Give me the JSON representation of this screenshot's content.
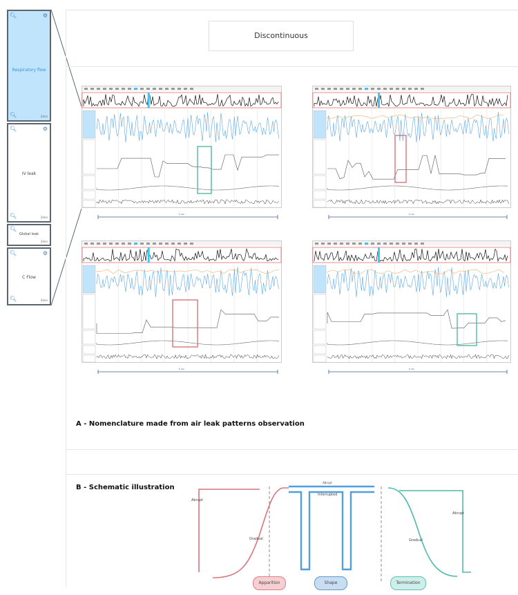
{
  "header": {
    "title": "Discontinuous"
  },
  "sidebar": {
    "items": [
      {
        "label": "Respiratory flow",
        "scale": "2min"
      },
      {
        "label": "IV leak",
        "scale": "2min"
      },
      {
        "label": "Global leak",
        "scale": "2min"
      },
      {
        "label": "C Flow",
        "scale": "2min"
      }
    ]
  },
  "recordings": [
    {
      "scale_label": "5 min",
      "highlight": "teal"
    },
    {
      "scale_label": "5 min",
      "highlight": "red"
    },
    {
      "scale_label": "5 min",
      "highlight": "red"
    },
    {
      "scale_label": "5 min",
      "highlight": "teal"
    }
  ],
  "section_a": {
    "title": "A - Nomenclature made from air leak patterns observation"
  },
  "section_b": {
    "title": "B - Schematic illustration",
    "labels": {
      "abrupt_left": "Abrupt",
      "gradual_left": "Gradual",
      "abrupt_top": "Abrupt",
      "interrupted": "Interrupted",
      "gradual_right": "Gradual",
      "abrupt_right": "Abrupt"
    },
    "pills": [
      {
        "label": "Apparition",
        "color": "#f6cfd3",
        "border": "#e07c86"
      },
      {
        "label": "Shape",
        "color": "#c9ddf2",
        "border": "#5f96cf"
      },
      {
        "label": "Termination",
        "color": "#cdeeea",
        "border": "#5ec1b5"
      }
    ]
  },
  "colors": {
    "blue": "#4f9ee0",
    "red": "#d9737c",
    "teal": "#4fb8ab",
    "navy": "#3a5f86"
  }
}
